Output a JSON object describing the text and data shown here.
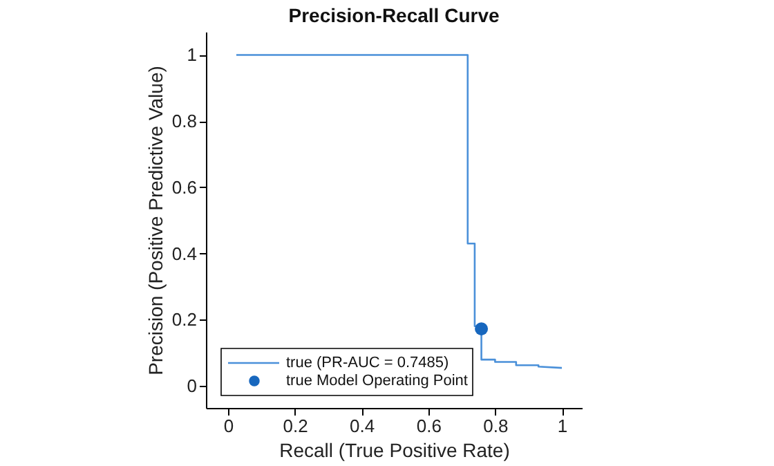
{
  "chart_data": {
    "type": "line",
    "title": "Precision-Recall Curve",
    "xlabel": "Recall (True Positive Rate)",
    "ylabel": "Precision (Positive Predictive Value)",
    "xlim": [
      -0.066,
      1.06
    ],
    "ylim": [
      -0.067,
      1.07
    ],
    "xticks": [
      0,
      0.2,
      0.4,
      0.6,
      0.8,
      1
    ],
    "yticks": [
      0,
      0.2,
      0.4,
      0.6,
      0.8,
      1
    ],
    "grid": false,
    "legend": "bottom left",
    "series": [
      {
        "name": "true (PR-AUC = 0.7485)",
        "color": "#4a90d9",
        "x": [
          0.025,
          0.718,
          0.718,
          0.739,
          0.739,
          0.759,
          0.759,
          0.8,
          0.8,
          0.863,
          0.863,
          0.93,
          0.93,
          1.0
        ],
        "values": [
          1.0,
          1.0,
          0.43,
          0.43,
          0.18,
          0.18,
          0.079,
          0.079,
          0.072,
          0.072,
          0.062,
          0.062,
          0.058,
          0.054
        ]
      },
      {
        "name": "true Model Operating Point",
        "type": "scatter",
        "color": "#1767be",
        "marker": "circle",
        "x": [
          0.759
        ],
        "values": [
          0.172
        ]
      }
    ]
  }
}
